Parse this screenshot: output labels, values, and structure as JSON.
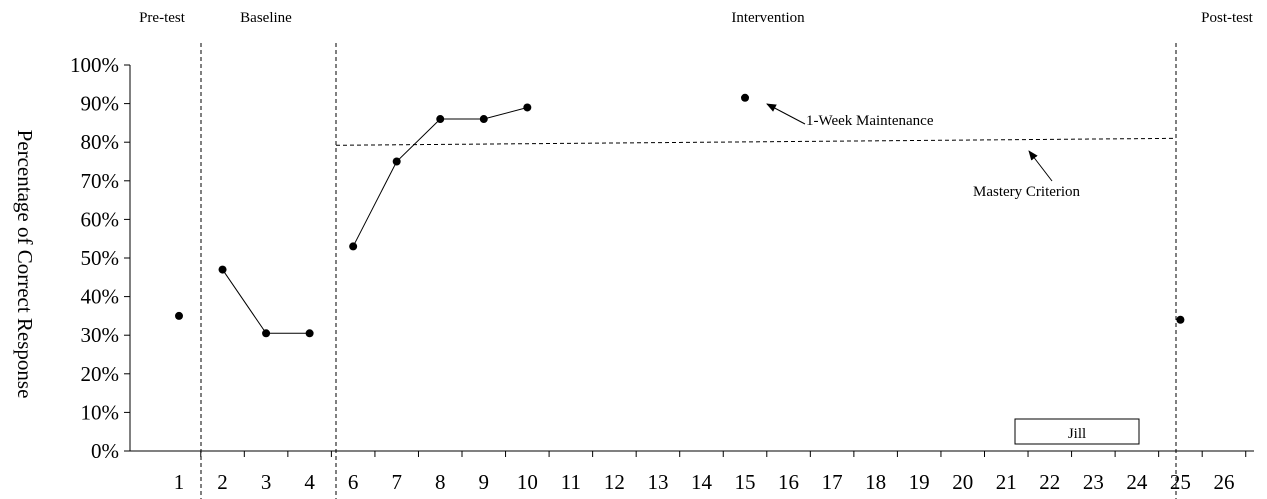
{
  "chart_data": {
    "type": "line",
    "ylabel": "Percentage of Correct Response",
    "xlabel": "",
    "ylim": [
      0,
      100
    ],
    "y_ticks": [
      "0%",
      "10%",
      "20%",
      "30%",
      "40%",
      "50%",
      "60%",
      "70%",
      "80%",
      "90%",
      "100%"
    ],
    "x_ticks": [
      "1",
      "2",
      "3",
      "4",
      "6",
      "7",
      "8",
      "9",
      "10",
      "11",
      "12",
      "13",
      "14",
      "15",
      "16",
      "17",
      "18",
      "19",
      "20",
      "21",
      "22",
      "23",
      "24",
      "25",
      "26"
    ],
    "phases": [
      {
        "label": "Pre-test"
      },
      {
        "label": "Baseline"
      },
      {
        "label": "Intervention"
      },
      {
        "label": "Post-test"
      }
    ],
    "series": [
      {
        "name": "Jill",
        "segments": [
          [
            {
              "x": "1",
              "y": 35
            }
          ],
          [
            {
              "x": "2",
              "y": 47
            },
            {
              "x": "3",
              "y": 30.5
            },
            {
              "x": "4",
              "y": 30.5
            }
          ],
          [
            {
              "x": "6",
              "y": 53
            },
            {
              "x": "7",
              "y": 75
            },
            {
              "x": "8",
              "y": 86
            },
            {
              "x": "9",
              "y": 86
            },
            {
              "x": "10",
              "y": 89
            }
          ],
          [
            {
              "x": "15",
              "y": 91.5
            }
          ],
          [
            {
              "x": "25",
              "y": 34
            }
          ]
        ]
      }
    ],
    "mastery_line": {
      "from_x": "6",
      "to_x": "24",
      "y_start": 79.2,
      "y_end": 81
    },
    "annotations": [
      {
        "text": "1-Week Maintenance"
      },
      {
        "text": "Mastery Criterion"
      }
    ],
    "legend": {
      "label": "Jill",
      "placement": "bottom-right"
    },
    "grid": false
  }
}
